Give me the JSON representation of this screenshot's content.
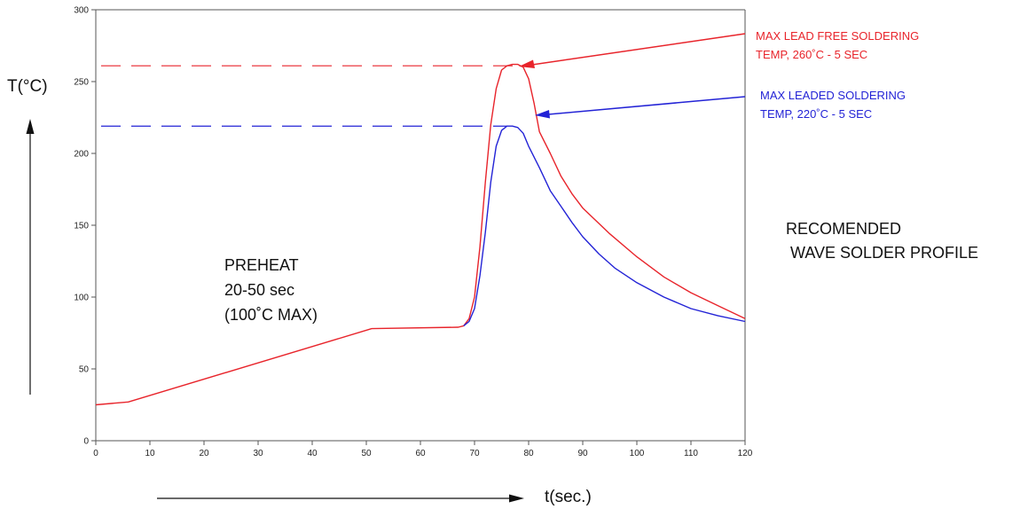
{
  "chart_data": {
    "type": "line",
    "title": "",
    "xlabel": "t(sec.)",
    "ylabel": "T(°C)",
    "xlim": [
      0,
      120
    ],
    "ylim": [
      0,
      300
    ],
    "x_ticks": [
      0,
      10,
      20,
      30,
      40,
      50,
      60,
      70,
      80,
      90,
      100,
      110,
      120
    ],
    "y_ticks": [
      0,
      50,
      100,
      150,
      200,
      250,
      300
    ],
    "grid": false,
    "series": [
      {
        "color": "#e8242b",
        "points": [
          [
            0,
            25
          ],
          [
            6,
            27
          ],
          [
            51,
            78
          ],
          [
            67,
            79
          ],
          [
            68,
            80
          ],
          [
            69,
            85
          ],
          [
            70,
            100
          ],
          [
            71,
            135
          ],
          [
            72,
            180
          ],
          [
            73,
            220
          ],
          [
            74,
            245
          ],
          [
            75,
            258
          ],
          [
            76,
            261
          ],
          [
            77,
            262
          ],
          [
            78,
            262
          ],
          [
            79,
            260
          ],
          [
            80,
            252
          ],
          [
            81,
            235
          ],
          [
            82,
            215
          ],
          [
            84,
            200
          ],
          [
            86,
            184
          ],
          [
            88,
            172
          ],
          [
            90,
            162
          ],
          [
            95,
            144
          ],
          [
            100,
            128
          ],
          [
            105,
            114
          ],
          [
            110,
            103
          ],
          [
            115,
            94
          ],
          [
            120,
            85
          ]
        ]
      },
      {
        "color": "#2323d6",
        "points": [
          [
            68,
            80
          ],
          [
            69,
            83
          ],
          [
            70,
            92
          ],
          [
            71,
            115
          ],
          [
            72,
            145
          ],
          [
            73,
            180
          ],
          [
            74,
            205
          ],
          [
            75,
            216
          ],
          [
            76,
            219
          ],
          [
            77,
            219
          ],
          [
            78,
            218
          ],
          [
            79,
            214
          ],
          [
            80,
            205
          ],
          [
            82,
            190
          ],
          [
            84,
            174
          ],
          [
            86,
            163
          ],
          [
            88,
            152
          ],
          [
            90,
            142
          ],
          [
            93,
            130
          ],
          [
            96,
            120
          ],
          [
            100,
            110
          ],
          [
            105,
            100
          ],
          [
            110,
            92
          ],
          [
            115,
            87
          ],
          [
            120,
            83
          ]
        ]
      }
    ],
    "reference_lines": [
      {
        "y": 261,
        "color": "#e8242b"
      },
      {
        "y": 219,
        "color": "#2323d6"
      }
    ],
    "annotations": [
      {
        "id": "lead-free",
        "color": "#e8242b",
        "lines": [
          "MAX LEAD FREE SOLDERING",
          "TEMP, 260˚C - 5 SEC"
        ],
        "points_to": [
          79,
          261
        ]
      },
      {
        "id": "leaded",
        "color": "#2323d6",
        "lines": [
          "MAX LEADED SOLDERING",
          "TEMP, 220˚C - 5 SEC"
        ],
        "points_to": [
          82,
          226
        ]
      },
      {
        "id": "preheat",
        "lines": [
          "PREHEAT",
          "20-50 sec",
          "(100˚C MAX)"
        ]
      },
      {
        "id": "profile",
        "lines": [
          "RECOMENDED",
          " WAVE SOLDER PROFILE"
        ]
      }
    ]
  }
}
